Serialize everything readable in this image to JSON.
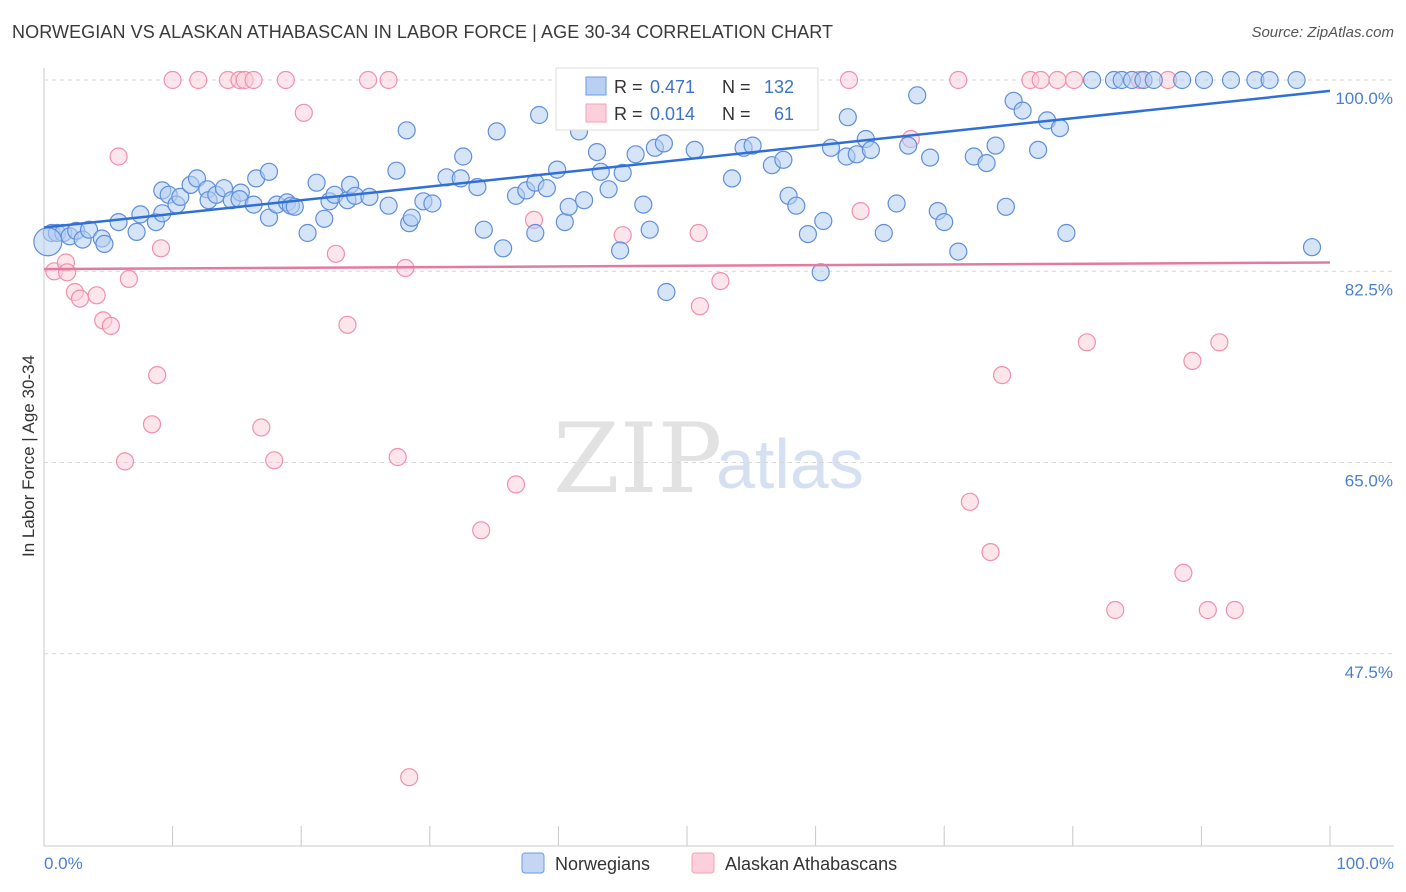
{
  "header": {
    "title": "NORWEGIAN VS ALASKAN ATHABASCAN IN LABOR FORCE | AGE 30-34 CORRELATION CHART",
    "source": "Source: ZipAtlas.com"
  },
  "watermark": {
    "zip": "ZIP",
    "atlas": "atlas"
  },
  "chart_data": {
    "type": "scatter",
    "title": "NORWEGIAN VS ALASKAN ATHABASCAN IN LABOR FORCE | AGE 30-34 CORRELATION CHART",
    "xlabel": "",
    "ylabel": "In Labor Force | Age 30-34",
    "xlim": [
      0,
      100
    ],
    "ylim": [
      30,
      102
    ],
    "x_tick_labels": {
      "left": "0.0%",
      "right": "100.0%"
    },
    "y_ticks": [
      {
        "value": 100,
        "label": "100.0%"
      },
      {
        "value": 82.5,
        "label": "82.5%"
      },
      {
        "value": 65,
        "label": "65.0%"
      },
      {
        "value": 47.5,
        "label": "47.5%"
      }
    ],
    "grid": "horizontal dashed",
    "legend_position": "bottom-center",
    "colors": {
      "norwegians": "#6b9be0",
      "alaskan": "#f3a0b8",
      "blue_line": "#2f6fd6",
      "pink_line": "#e57aa0"
    },
    "stats_box": {
      "rows": [
        {
          "r_label": "R =",
          "r_value": "0.471",
          "n_label": "N =",
          "n_value": "132"
        },
        {
          "r_label": "R =",
          "r_value": "0.014",
          "n_label": "N =",
          "n_value": "61"
        }
      ]
    },
    "series": [
      {
        "name": "Norwegians",
        "trendline": {
          "x0": 0,
          "y0": 86.5,
          "x1": 100,
          "y1": 99.0
        },
        "points": [
          [
            0.6,
            86.0
          ],
          [
            1.0,
            86.0
          ],
          [
            1.5,
            86.0
          ],
          [
            2.0,
            85.7
          ],
          [
            2.5,
            86.2
          ],
          [
            3.0,
            85.4
          ],
          [
            3.5,
            86.3
          ],
          [
            4.5,
            85.5
          ],
          [
            4.7,
            85.0
          ],
          [
            5.8,
            87.0
          ],
          [
            7.2,
            86.1
          ],
          [
            7.5,
            87.7
          ],
          [
            8.7,
            87.0
          ],
          [
            9.2,
            87.8
          ],
          [
            9.2,
            89.9
          ],
          [
            9.7,
            89.5
          ],
          [
            10.3,
            88.6
          ],
          [
            10.6,
            89.3
          ],
          [
            11.4,
            90.4
          ],
          [
            11.9,
            91.0
          ],
          [
            12.7,
            90.0
          ],
          [
            12.8,
            89.0
          ],
          [
            13.4,
            89.5
          ],
          [
            14.0,
            90.1
          ],
          [
            14.6,
            89.0
          ],
          [
            15.3,
            89.7
          ],
          [
            15.2,
            89.1
          ],
          [
            16.3,
            88.6
          ],
          [
            16.5,
            91.0
          ],
          [
            17.5,
            91.6
          ],
          [
            17.5,
            87.4
          ],
          [
            18.1,
            88.6
          ],
          [
            18.9,
            88.8
          ],
          [
            19.2,
            88.5
          ],
          [
            19.5,
            88.4
          ],
          [
            20.5,
            86.0
          ],
          [
            21.2,
            90.6
          ],
          [
            21.8,
            87.3
          ],
          [
            22.2,
            88.9
          ],
          [
            22.6,
            89.5
          ],
          [
            23.6,
            89.0
          ],
          [
            23.8,
            90.4
          ],
          [
            24.2,
            89.4
          ],
          [
            25.3,
            89.3
          ],
          [
            26.8,
            88.5
          ],
          [
            27.4,
            91.7
          ],
          [
            28.2,
            95.4
          ],
          [
            28.4,
            86.9
          ],
          [
            28.6,
            87.4
          ],
          [
            29.5,
            88.9
          ],
          [
            30.2,
            88.7
          ],
          [
            31.3,
            91.1
          ],
          [
            32.4,
            91.0
          ],
          [
            32.6,
            93.0
          ],
          [
            33.7,
            90.2
          ],
          [
            34.2,
            86.3
          ],
          [
            35.2,
            95.3
          ],
          [
            35.7,
            84.6
          ],
          [
            36.7,
            89.4
          ],
          [
            37.5,
            89.9
          ],
          [
            38.2,
            90.6
          ],
          [
            38.2,
            86.0
          ],
          [
            38.5,
            96.8
          ],
          [
            39.1,
            90.1
          ],
          [
            39.9,
            91.8
          ],
          [
            40.5,
            87.0
          ],
          [
            40.8,
            88.4
          ],
          [
            41.6,
            95.3
          ],
          [
            42.0,
            89.0
          ],
          [
            43.0,
            93.4
          ],
          [
            43.3,
            91.6
          ],
          [
            43.9,
            90.0
          ],
          [
            44.8,
            84.4
          ],
          [
            45.0,
            91.5
          ],
          [
            46.0,
            93.2
          ],
          [
            46.6,
            88.6
          ],
          [
            47.1,
            86.3
          ],
          [
            47.5,
            93.8
          ],
          [
            48.2,
            94.2
          ],
          [
            48.4,
            80.6
          ],
          [
            49.3,
            97.3
          ],
          [
            50.6,
            93.6
          ],
          [
            51.7,
            96.6
          ],
          [
            52.0,
            98.2
          ],
          [
            53.5,
            91.0
          ],
          [
            54.4,
            93.8
          ],
          [
            55.1,
            97.0
          ],
          [
            55.1,
            94.0
          ],
          [
            56.6,
            92.2
          ],
          [
            57.5,
            92.7
          ],
          [
            57.9,
            89.4
          ],
          [
            58.5,
            88.5
          ],
          [
            59.4,
            85.9
          ],
          [
            60.4,
            82.4
          ],
          [
            60.6,
            87.1
          ],
          [
            61.2,
            93.8
          ],
          [
            62.4,
            93.0
          ],
          [
            62.5,
            96.6
          ],
          [
            63.2,
            93.2
          ],
          [
            63.9,
            94.6
          ],
          [
            64.3,
            93.6
          ],
          [
            65.3,
            86.0
          ],
          [
            66.3,
            88.7
          ],
          [
            67.2,
            94.0
          ],
          [
            67.9,
            98.6
          ],
          [
            68.9,
            92.9
          ],
          [
            69.5,
            88.0
          ],
          [
            70.0,
            87.0
          ],
          [
            71.1,
            84.3
          ],
          [
            72.3,
            93.0
          ],
          [
            73.3,
            92.4
          ],
          [
            74.0,
            94.0
          ],
          [
            74.8,
            88.4
          ],
          [
            75.4,
            98.1
          ],
          [
            76.1,
            97.2
          ],
          [
            77.3,
            93.6
          ],
          [
            78.0,
            96.3
          ],
          [
            79.0,
            95.6
          ],
          [
            79.5,
            86.0
          ],
          [
            81.5,
            100.0
          ],
          [
            83.2,
            100.0
          ],
          [
            83.8,
            100.0
          ],
          [
            84.6,
            100.0
          ],
          [
            85.5,
            100.0
          ],
          [
            86.3,
            100.0
          ],
          [
            88.5,
            100.0
          ],
          [
            90.2,
            100.0
          ],
          [
            92.3,
            100.0
          ],
          [
            94.2,
            100.0
          ],
          [
            95.3,
            100.0
          ],
          [
            97.4,
            100.0
          ],
          [
            98.6,
            84.7
          ]
        ]
      },
      {
        "name": "Alaskan Athabascans",
        "trendline": {
          "x0": 0,
          "y0": 82.7,
          "x1": 100,
          "y1": 83.3
        },
        "points": [
          [
            0.8,
            82.5
          ],
          [
            1.7,
            83.3
          ],
          [
            1.8,
            82.4
          ],
          [
            2.4,
            80.6
          ],
          [
            2.8,
            80.0
          ],
          [
            4.1,
            80.3
          ],
          [
            4.6,
            78.0
          ],
          [
            5.2,
            77.5
          ],
          [
            5.8,
            93.0
          ],
          [
            6.3,
            65.1
          ],
          [
            6.6,
            81.8
          ],
          [
            8.4,
            68.5
          ],
          [
            8.8,
            73.0
          ],
          [
            9.1,
            84.6
          ],
          [
            10.0,
            100.0
          ],
          [
            12.0,
            100.0
          ],
          [
            14.3,
            100.0
          ],
          [
            15.2,
            100.0
          ],
          [
            15.6,
            100.0
          ],
          [
            16.3,
            100.0
          ],
          [
            16.9,
            68.2
          ],
          [
            17.9,
            65.2
          ],
          [
            18.8,
            100.0
          ],
          [
            20.2,
            97.0
          ],
          [
            22.7,
            84.1
          ],
          [
            23.6,
            77.6
          ],
          [
            25.2,
            100.0
          ],
          [
            26.8,
            100.0
          ],
          [
            27.5,
            65.5
          ],
          [
            28.1,
            82.8
          ],
          [
            28.4,
            36.2
          ],
          [
            34.0,
            58.8
          ],
          [
            36.7,
            63.0
          ],
          [
            38.1,
            87.2
          ],
          [
            45.0,
            85.8
          ],
          [
            50.9,
            86.0
          ],
          [
            51.0,
            79.3
          ],
          [
            52.6,
            81.6
          ],
          [
            54.6,
            100.0
          ],
          [
            57.0,
            100.0
          ],
          [
            59.3,
            100.0
          ],
          [
            62.6,
            100.0
          ],
          [
            63.5,
            88.0
          ],
          [
            67.4,
            94.6
          ],
          [
            71.1,
            100.0
          ],
          [
            72.0,
            61.4
          ],
          [
            73.6,
            56.8
          ],
          [
            74.5,
            73.0
          ],
          [
            76.7,
            100.0
          ],
          [
            77.5,
            100.0
          ],
          [
            78.8,
            100.0
          ],
          [
            80.1,
            100.0
          ],
          [
            81.1,
            76.0
          ],
          [
            83.3,
            51.5
          ],
          [
            85.2,
            100.0
          ],
          [
            87.4,
            100.0
          ],
          [
            88.6,
            54.9
          ],
          [
            89.3,
            74.3
          ],
          [
            90.5,
            51.5
          ],
          [
            91.4,
            76.0
          ],
          [
            92.6,
            51.5
          ]
        ]
      }
    ]
  },
  "legend": {
    "items": [
      "Norwegians",
      "Alaskan Athabascans"
    ]
  }
}
